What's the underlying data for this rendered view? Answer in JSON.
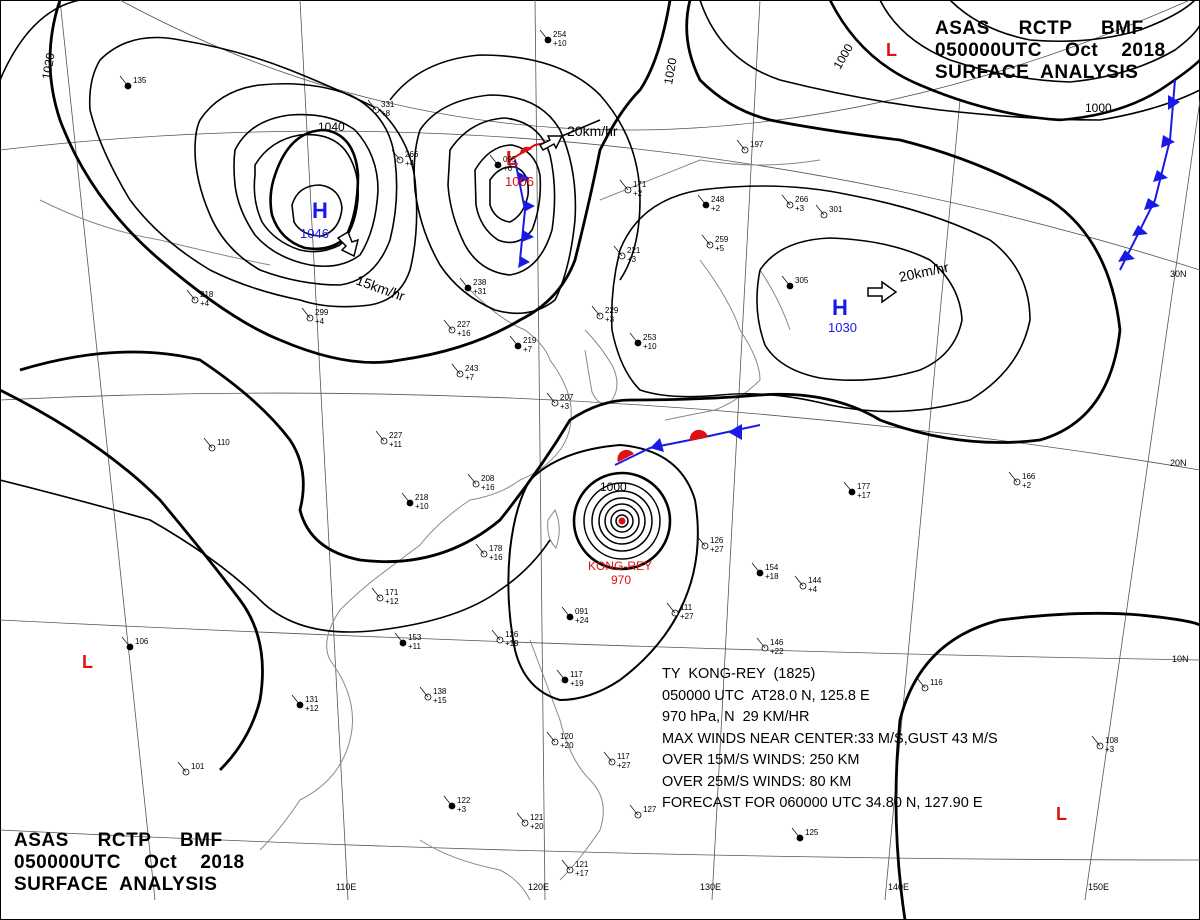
{
  "header": {
    "line1": "ASAS     RCTP     BMF",
    "line2": "050000UTC    Oct    2018",
    "line3": "SURFACE  ANALYSIS"
  },
  "typhoon_info": {
    "name_line": "TY  KONG-REY  (1825)",
    "position_line": "050000 UTC  AT28.0 N, 125.8 E",
    "pressure_line": "970 hPa, N  29 KM/HR",
    "max_winds_line": "MAX WINDS NEAR CENTER:33 M/S,GUST 43 M/S",
    "winds15_line": "OVER 15M/S WINDS: 250 KM",
    "winds25_line": "OVER 25M/S WINDS: 80 KM",
    "forecast_line": "FORECAST FOR 060000 UTC 34.80 N, 127.90 E"
  },
  "isobar_labels": {
    "tl_1020": "1020",
    "mid_1020": "1020",
    "ne_1000": "1000",
    "ne_1000b": "1000",
    "hi_1040": "1040",
    "ty_1000": "1000"
  },
  "pressure_centers": {
    "high_west": {
      "symbol": "H",
      "value": "1046"
    },
    "low_north": {
      "symbol": "L",
      "value": "1006"
    },
    "high_east": {
      "symbol": "H",
      "value": "1030"
    },
    "low_ne": {
      "symbol": "L"
    },
    "low_w": {
      "symbol": "L"
    },
    "low_se": {
      "symbol": "L"
    },
    "typhoon": {
      "name": "KONG-REY",
      "value": "970"
    }
  },
  "motion_labels": {
    "high_west": "15km/hr",
    "low_north": "20km/hr",
    "high_east": "20km/hr"
  },
  "latitude_labels": [
    "30N",
    "20N",
    "10N"
  ],
  "longitude_labels": [
    "110E",
    "120E",
    "130E",
    "140E",
    "150E"
  ],
  "station_samples": [
    {
      "t": "254",
      "p": "+10"
    },
    {
      "t": "331",
      "p": "+8"
    },
    {
      "t": "266",
      "p": "+4"
    },
    {
      "t": "095",
      "p": "+6"
    },
    {
      "t": "171",
      "p": "+2"
    },
    {
      "t": "197",
      "p": ""
    },
    {
      "t": "248",
      "p": "+2"
    },
    {
      "t": "266",
      "p": "+3"
    },
    {
      "t": "301",
      "p": ""
    },
    {
      "t": "305",
      "p": ""
    },
    {
      "t": "259",
      "p": "+5"
    },
    {
      "t": "221",
      "p": "+3"
    },
    {
      "t": "238",
      "p": "+31"
    },
    {
      "t": "227",
      "p": "+16"
    },
    {
      "t": "243",
      "p": "+7"
    },
    {
      "t": "219",
      "p": "+7"
    },
    {
      "t": "229",
      "p": "+3"
    },
    {
      "t": "207",
      "p": "+3"
    },
    {
      "t": "253",
      "p": "+10"
    },
    {
      "t": "227",
      "p": "+11"
    },
    {
      "t": "208",
      "p": "+16"
    },
    {
      "t": "218",
      "p": "+10"
    },
    {
      "t": "178",
      "p": "+16"
    },
    {
      "t": "171",
      "p": "+12"
    },
    {
      "t": "153",
      "p": "+11"
    },
    {
      "t": "138",
      "p": "+15"
    },
    {
      "t": "126",
      "p": "+19"
    },
    {
      "t": "091",
      "p": "+24"
    },
    {
      "t": "111",
      "p": "+27"
    },
    {
      "t": "126",
      "p": "+27"
    },
    {
      "t": "154",
      "p": "+18"
    },
    {
      "t": "144",
      "p": "+4"
    },
    {
      "t": "146",
      "p": "+22"
    },
    {
      "t": "177",
      "p": "+17"
    },
    {
      "t": "166",
      "p": "+2"
    },
    {
      "t": "108",
      "p": "+3"
    },
    {
      "t": "117",
      "p": "+19"
    },
    {
      "t": "120",
      "p": "+20"
    },
    {
      "t": "117",
      "p": "+27"
    },
    {
      "t": "122",
      "p": "+3"
    },
    {
      "t": "121",
      "p": "+20"
    },
    {
      "t": "127",
      "p": ""
    },
    {
      "t": "125",
      "p": ""
    },
    {
      "t": "116",
      "p": ""
    },
    {
      "t": "110",
      "p": ""
    },
    {
      "t": "106",
      "p": ""
    },
    {
      "t": "299",
      "p": "+4"
    },
    {
      "t": "218",
      "p": "+4"
    },
    {
      "t": "131",
      "p": "+12"
    },
    {
      "t": "121",
      "p": "+17"
    },
    {
      "t": "101",
      "p": ""
    },
    {
      "t": "135",
      "p": ""
    }
  ],
  "colors": {
    "line": "#000000",
    "grid": "#555555",
    "coast": "#888888",
    "high": "#1a1ae6",
    "low": "#e01010"
  }
}
